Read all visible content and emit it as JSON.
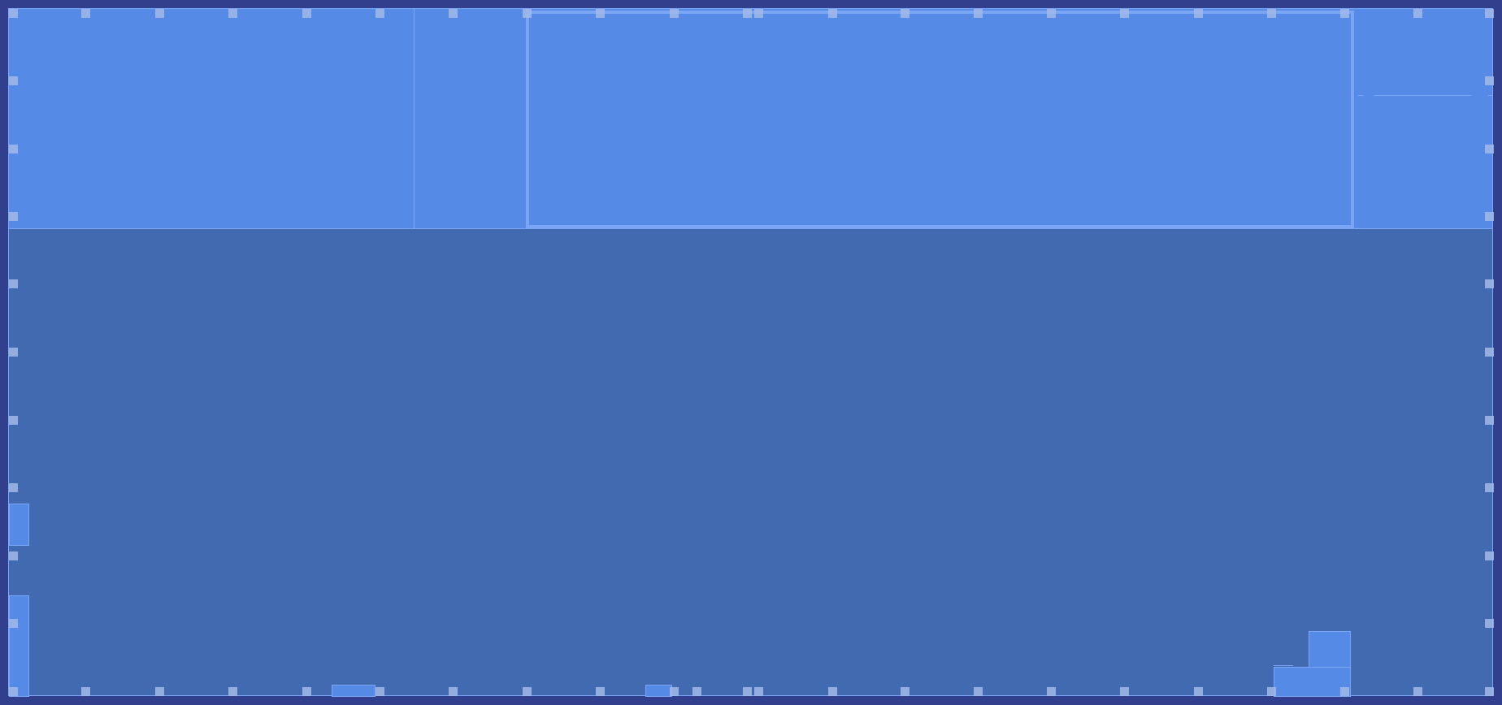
{
  "canvas": {
    "background_color": "#313f8d",
    "workspace_color": "#416ab0",
    "panel_color": "#558ae6",
    "outline_color": "#7aa6f5",
    "handle_color": "#a2b8e6"
  },
  "handles": {
    "top_row_count": 21,
    "bottom_row_count": 21,
    "left_column_count": 10,
    "right_column_count": 10
  }
}
